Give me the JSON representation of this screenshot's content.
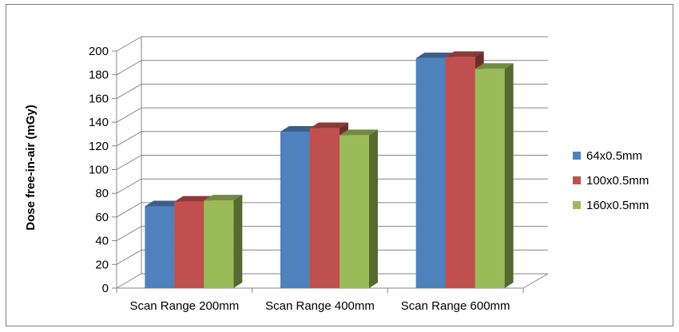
{
  "chart_data": {
    "type": "bar",
    "title": "",
    "xlabel": "",
    "ylabel": "Dose free-in-air (mGy)",
    "categories": [
      "Scan Range 200mm",
      "Scan Range 400mm",
      "Scan Range 600mm"
    ],
    "series": [
      {
        "name": "64x0.5mm",
        "values": [
          69,
          132,
          194
        ],
        "color": "#4f81bd",
        "top_color": "#3b5f8a",
        "side_color": "#2f4b6e"
      },
      {
        "name": "100x0.5mm",
        "values": [
          73,
          135,
          195
        ],
        "color": "#c0504d",
        "top_color": "#8c3a38",
        "side_color": "#6e2d2c"
      },
      {
        "name": "160x0.5mm",
        "values": [
          74,
          129,
          185
        ],
        "color": "#9bbb59",
        "top_color": "#728a41",
        "side_color": "#566b2f"
      }
    ],
    "yticks": [
      0,
      20,
      40,
      60,
      80,
      100,
      120,
      140,
      160,
      180,
      200
    ],
    "ylim": [
      0,
      200
    ],
    "grid": true,
    "legend_position": "right",
    "style": "3d-clustered-column"
  }
}
